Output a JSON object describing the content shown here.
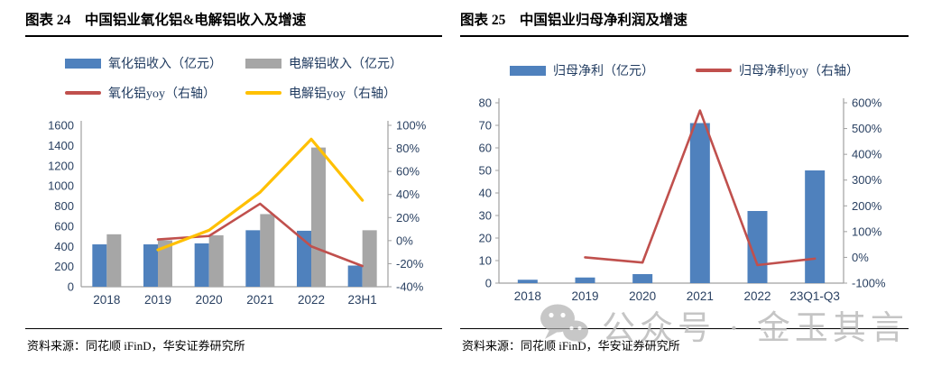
{
  "panels": [
    {
      "id": "chart24",
      "title": "图表 24　中国铝业氧化铝&电解铝收入及增速",
      "source": "资料来源：同花顺 iFinD，华安证券研究所",
      "legend": [
        {
          "type": "bar",
          "color": "#4F81BD",
          "label": "氧化铝收入（亿元）"
        },
        {
          "type": "bar",
          "color": "#A6A6A6",
          "label": "电解铝收入（亿元）"
        },
        {
          "type": "line",
          "color": "#C0504D",
          "label": "氧化铝yoy（右轴）"
        },
        {
          "type": "line",
          "color": "#FFC000",
          "label": "电解铝yoy（右轴）"
        }
      ]
    },
    {
      "id": "chart25",
      "title": "图表 25　中国铝业归母净利润及增速",
      "source": "资料来源：同花顺 iFinD，华安证券研究所",
      "legend": [
        {
          "type": "bar",
          "color": "#4F81BD",
          "label": "归母净利（亿元）"
        },
        {
          "type": "line",
          "color": "#C0504D",
          "label": "归母净利yoy（右轴）"
        }
      ]
    }
  ],
  "watermark": {
    "icon": "wechat-icon",
    "text": "公众号 · 金玉其言"
  },
  "colors": {
    "bar_blue": "#4F81BD",
    "bar_gray": "#A6A6A6",
    "line_red": "#C0504D",
    "line_yellow": "#FFC000",
    "axis_text": "#2A4162",
    "axis_line": "#A0A0A0",
    "watermark_gray": "#BCBCBC"
  },
  "chart_data": [
    {
      "type": "bar+line",
      "title": "中国铝业氧化铝&电解铝收入及增速",
      "categories": [
        "2018",
        "2019",
        "2020",
        "2021",
        "2022",
        "23H1"
      ],
      "bar_series": [
        {
          "name": "氧化铝收入（亿元）",
          "color": "#4F81BD",
          "values": [
            420,
            420,
            430,
            560,
            555,
            210
          ]
        },
        {
          "name": "电解铝收入（亿元）",
          "color": "#A6A6A6",
          "values": [
            520,
            460,
            510,
            720,
            1380,
            560
          ]
        }
      ],
      "line_series": [
        {
          "name": "氧化铝yoy（右轴）",
          "color": "#C0504D",
          "stroke_width": 2.6,
          "axis": "right",
          "values": [
            null,
            1,
            4,
            32,
            -5,
            -22
          ]
        },
        {
          "name": "电解铝yoy（右轴）",
          "color": "#FFC000",
          "stroke_width": 3.2,
          "axis": "right",
          "values": [
            null,
            -8,
            9,
            42,
            88,
            35
          ]
        }
      ],
      "left_axis": {
        "min": 0,
        "max": 1600,
        "step": 200,
        "suffix": ""
      },
      "right_axis": {
        "min": -40,
        "max": 100,
        "step": 20,
        "suffix": "%"
      },
      "legend_position": "top",
      "grid": false
    },
    {
      "type": "bar+line",
      "title": "中国铝业归母净利润及增速",
      "categories": [
        "2018",
        "2019",
        "2020",
        "2021",
        "2022",
        "23Q1-Q3"
      ],
      "bar_series": [
        {
          "name": "归母净利（亿元）",
          "color": "#4F81BD",
          "values": [
            1.5,
            2.5,
            4,
            71,
            32,
            50
          ]
        }
      ],
      "line_series": [
        {
          "name": "归母净利yoy（右轴）",
          "color": "#C0504D",
          "stroke_width": 2.6,
          "axis": "right",
          "values": [
            null,
            0,
            -20,
            570,
            -30,
            -5
          ]
        }
      ],
      "left_axis": {
        "min": 0,
        "max": 80,
        "step": 10,
        "suffix": ""
      },
      "right_axis": {
        "min": -100,
        "max": 600,
        "step": 100,
        "suffix": "%"
      },
      "legend_position": "top",
      "grid": false
    }
  ]
}
